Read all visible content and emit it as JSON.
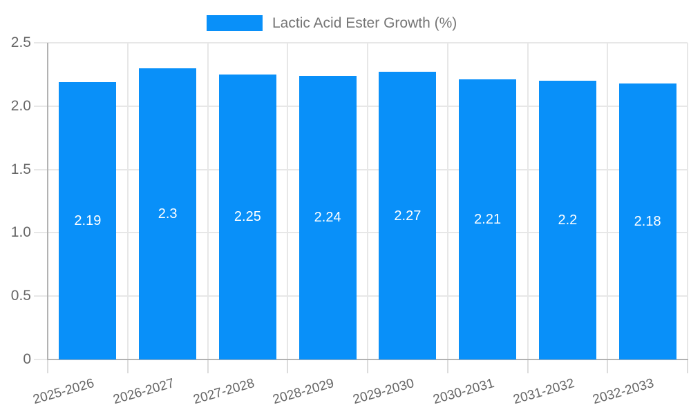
{
  "chart_data": {
    "type": "bar",
    "title": "Lactic Acid Ester Growth (%)",
    "categories": [
      "2025-2026",
      "2026-2027",
      "2027-2028",
      "2028-2029",
      "2029-2030",
      "2030-2031",
      "2031-2032",
      "2032-2033"
    ],
    "values": [
      2.19,
      2.3,
      2.25,
      2.24,
      2.27,
      2.21,
      2.2,
      2.18
    ],
    "value_labels": [
      "2.19",
      "2.3",
      "2.25",
      "2.24",
      "2.27",
      "2.21",
      "2.2",
      "2.18"
    ],
    "xlabel": "",
    "ylabel": "",
    "ylim": [
      0,
      2.5
    ],
    "yticks": [
      0,
      0.5,
      1,
      1.5,
      2,
      2.5
    ],
    "ytick_labels": [
      "0",
      "0.5",
      "1.0",
      "1.5",
      "2.0",
      "2.5"
    ],
    "grid": true,
    "legend": {
      "position": "top",
      "label": "Lactic Acid Ester Growth (%)"
    },
    "colors": {
      "bar": "#0990f9",
      "gridline": "#e7e7e7",
      "axis": "#b2b2b2",
      "tick": "#dcdcdc",
      "axis_text": "#666666",
      "legend_text": "#757575",
      "value_text": "#ffffff",
      "background": "#ffffff"
    }
  }
}
